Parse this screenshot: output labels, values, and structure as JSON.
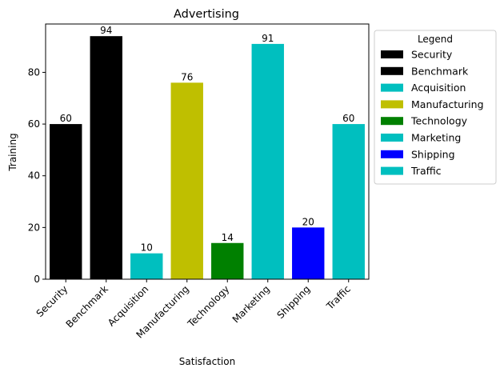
{
  "chart_data": {
    "type": "bar",
    "title": "Advertising",
    "xlabel": "Satisfaction",
    "ylabel": "Training",
    "ylim": [
      0,
      98.7
    ],
    "yticks": [
      0,
      20,
      40,
      60,
      80
    ],
    "grid": false,
    "categories": [
      "Security",
      "Benchmark",
      "Acquisition",
      "Manufacturing",
      "Technology",
      "Marketing",
      "Shipping",
      "Traffic"
    ],
    "values": [
      60,
      94,
      10,
      76,
      14,
      91,
      20,
      60
    ],
    "colors": [
      "#000000",
      "#000000",
      "#00bfbf",
      "#bfbf00",
      "#008000",
      "#00bfbf",
      "#0000ff",
      "#00bfbf"
    ],
    "data_labels": [
      "60",
      "94",
      "10",
      "76",
      "14",
      "91",
      "20",
      "60"
    ],
    "legend": {
      "title": "Legend",
      "placement": "outside-right",
      "entries": [
        {
          "label": "Security",
          "color": "#000000"
        },
        {
          "label": "Benchmark",
          "color": "#000000"
        },
        {
          "label": "Acquisition",
          "color": "#00bfbf"
        },
        {
          "label": "Manufacturing",
          "color": "#bfbf00"
        },
        {
          "label": "Technology",
          "color": "#008000"
        },
        {
          "label": "Marketing",
          "color": "#00bfbf"
        },
        {
          "label": "Shipping",
          "color": "#0000ff"
        },
        {
          "label": "Traffic",
          "color": "#00bfbf"
        }
      ]
    }
  }
}
